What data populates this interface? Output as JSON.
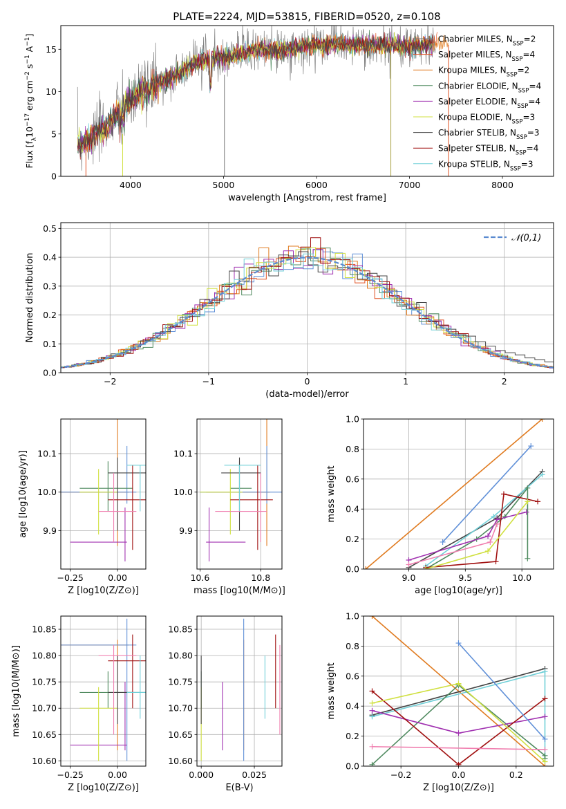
{
  "figure": {
    "title": "PLATE=2224, MJD=53815, FIBERID=0520, z=0.108"
  },
  "legend_entries": [
    {
      "name": "Chabrier MILES, N_SSP=2",
      "base": "Chabrier MILES, N",
      "sub": "SSP",
      "tail": "=2",
      "color": "#777777"
    },
    {
      "name": "Salpeter MILES, N_SSP=4",
      "base": "Salpeter MILES, N",
      "sub": "SSP",
      "tail": "=4",
      "color": "#e05020"
    },
    {
      "name": "Kroupa MILES, N_SSP=2",
      "base": "Kroupa MILES, N",
      "sub": "SSP",
      "tail": "=2",
      "color": "#e07b20"
    },
    {
      "name": "Chabrier ELODIE, N_SSP=4",
      "base": "Chabrier ELODIE, N",
      "sub": "SSP",
      "tail": "=4",
      "color": "#4f8a5f"
    },
    {
      "name": "Salpeter ELODIE, N_SSP=4",
      "base": "Salpeter ELODIE, N",
      "sub": "SSP",
      "tail": "=4",
      "color": "#a030b0"
    },
    {
      "name": "Kroupa ELODIE, N_SSP=3",
      "base": "Kroupa ELODIE, N",
      "sub": "SSP",
      "tail": "=3",
      "color": "#d0e040"
    },
    {
      "name": "Chabrier STELIB, N_SSP=3",
      "base": "Chabrier STELIB, N",
      "sub": "SSP",
      "tail": "=3",
      "color": "#444444"
    },
    {
      "name": "Salpeter STELIB, N_SSP=4",
      "base": "Salpeter STELIB, N",
      "sub": "SSP",
      "tail": "=4",
      "color": "#a01010"
    },
    {
      "name": "Kroupa STELIB, N_SSP=3",
      "base": "Kroupa STELIB, N",
      "sub": "SSP",
      "tail": "=3",
      "color": "#70d0d8"
    }
  ],
  "chart_data": [
    {
      "id": "spectrum",
      "type": "line",
      "title": "PLATE=2224, MJD=53815, FIBERID=0520, z=0.108",
      "xlabel": "wavelength [Angstrom, rest frame]",
      "ylabel_parts": [
        "Flux [f",
        "λ",
        "10",
        "−17",
        " erg cm",
        "−2",
        " s",
        "−1",
        " A",
        "−1",
        "]"
      ],
      "xlim": [
        3250,
        8550
      ],
      "ylim": [
        0,
        17.8
      ],
      "xticks": [
        "4000",
        "5000",
        "6000",
        "7000",
        "8000"
      ],
      "yticks": [
        "0",
        "5",
        "10",
        "15"
      ],
      "envelope": {
        "x": [
          3450,
          3600,
          3750,
          3900,
          4000,
          4100,
          4200,
          4300,
          4500,
          4700,
          4900,
          5000,
          5200,
          5400,
          5600,
          5800,
          6000,
          6200,
          6400,
          6600,
          6800,
          7000,
          7200,
          7400
        ],
        "y": [
          4.0,
          4.6,
          6.0,
          8.0,
          8.8,
          10.0,
          10.2,
          11.0,
          12.0,
          13.3,
          14.0,
          14.0,
          14.5,
          15.0,
          14.8,
          15.2,
          15.5,
          15.6,
          15.5,
          15.4,
          15.5,
          15.3,
          15.6,
          15.7
        ]
      },
      "grid": false,
      "legend_placement": "upper right"
    },
    {
      "id": "residuals",
      "type": "line",
      "xlabel": "(data-model)/error",
      "ylabel": "Normed distribution",
      "xlim": [
        -2.5,
        2.5
      ],
      "ylim": [
        0,
        0.52
      ],
      "xticks": [
        "−2",
        "−1",
        "0",
        "1",
        "2"
      ],
      "yticks": [
        "0.0",
        "0.1",
        "0.2",
        "0.3",
        "0.4",
        "0.5"
      ],
      "reference_curve": "N(0,1)",
      "legend_label": "𝒩(0,1)",
      "grid": true,
      "legend_placement": "upper right"
    },
    {
      "id": "age_vs_Z",
      "type": "scatter",
      "xlabel": "Z [log10(Z/Z⊙)]",
      "ylabel": "age [log10(age/yr)]",
      "xlim": [
        -0.3,
        0.15
      ],
      "ylim": [
        9.8,
        10.19
      ],
      "xticks": [
        "−0.25",
        "0.00"
      ],
      "yticks": [
        "9.9",
        "10.0",
        "10.1"
      ],
      "grid": true
    },
    {
      "id": "age_vs_mass",
      "type": "scatter",
      "xlabel": "mass [log10(M/M⊙)]",
      "xlim": [
        10.59,
        10.87
      ],
      "ylim": [
        9.8,
        10.19
      ],
      "xticks": [
        "10.6",
        "10.8"
      ],
      "yticks": [
        "9.9",
        "10.0",
        "10.1"
      ],
      "grid": true
    },
    {
      "id": "mass_weight_vs_age",
      "type": "line",
      "xlabel": "age [log10(age/yr)]",
      "ylabel": "mass weight",
      "xlim": [
        8.6,
        10.28
      ],
      "ylim": [
        0,
        1.0
      ],
      "xticks": [
        "9.0",
        "9.5",
        "10.0"
      ],
      "yticks": [
        "0.0",
        "0.2",
        "0.4",
        "0.6",
        "0.8",
        "1.0"
      ],
      "grid": true,
      "series": [
        {
          "name": "Kroupa MILES, N_SSP=2",
          "color": "#e07b20",
          "x": [
            8.62,
            10.18
          ],
          "y": [
            0.0,
            1.0
          ]
        },
        {
          "name": "Chabrier STELIB, N_SSP=3",
          "color": "#444444",
          "x": [
            9.0,
            9.78,
            10.18
          ],
          "y": [
            0.01,
            0.34,
            0.65
          ]
        },
        {
          "name": "Kroupa STELIB, N_SSP=3",
          "color": "#70d0d8",
          "x": [
            9.15,
            9.75,
            10.18
          ],
          "y": [
            0.02,
            0.35,
            0.63
          ]
        },
        {
          "name": "Chabrier ELODIE, N_SSP=4",
          "color": "#4f8a5f",
          "x": [
            9.15,
            9.6,
            9.85,
            10.05,
            10.05
          ],
          "y": [
            0.0,
            0.2,
            0.35,
            0.54,
            0.07
          ]
        },
        {
          "name": "Salpeter ELODIE, N_SSP=4",
          "color": "#a030b0",
          "x": [
            9.0,
            9.7,
            9.78,
            10.04
          ],
          "y": [
            0.06,
            0.22,
            0.33,
            0.38
          ]
        },
        {
          "name": "Salpeter STELIB, N_SSP=4",
          "color": "#a01010",
          "x": [
            9.15,
            9.77,
            9.84,
            10.14
          ],
          "y": [
            0.01,
            0.05,
            0.5,
            0.45
          ]
        },
        {
          "name": "Chabrier MILES, N_SSP=2",
          "color": "#6090d8",
          "x": [
            9.3,
            10.08
          ],
          "y": [
            0.18,
            0.82
          ]
        },
        {
          "name": "Kroupa ELODIE, N_SSP=3",
          "color": "#d0e040",
          "x": [
            9.15,
            9.7,
            10.05
          ],
          "y": [
            0.0,
            0.12,
            0.45
          ]
        },
        {
          "name": "Salpeter MILES, N_SSP=4",
          "color": "#f080b0",
          "x": [
            9.0,
            9.72,
            9.78
          ],
          "y": [
            0.03,
            0.18,
            0.3
          ]
        }
      ]
    },
    {
      "id": "mass_vs_Z",
      "type": "scatter",
      "xlabel": "Z [log10(Z/Z⊙)]",
      "ylabel": "mass [log10(M/M⊙)]",
      "xlim": [
        -0.3,
        0.15
      ],
      "ylim": [
        10.59,
        10.875
      ],
      "xticks": [
        "−0.25",
        "0.00"
      ],
      "yticks": [
        "10.60",
        "10.65",
        "10.70",
        "10.75",
        "10.80",
        "10.85"
      ],
      "grid": true
    },
    {
      "id": "mass_vs_ebv",
      "type": "scatter",
      "xlabel": "E(B-V)",
      "xlim": [
        -0.002,
        0.038
      ],
      "ylim": [
        10.59,
        10.875
      ],
      "xticks": [
        "0.000",
        "0.025"
      ],
      "yticks": [
        "10.60",
        "10.65",
        "10.70",
        "10.75",
        "10.80",
        "10.85"
      ],
      "grid": true
    },
    {
      "id": "mass_weight_vs_Z",
      "type": "line",
      "xlabel": "Z [log10(Z/Z⊙)]",
      "ylabel": "mass weight",
      "xlim": [
        -0.33,
        0.33
      ],
      "ylim": [
        0,
        1.0
      ],
      "xticks": [
        "−0.2",
        "0.0",
        "0.2"
      ],
      "yticks": [
        "0.0",
        "0.2",
        "0.4",
        "0.6",
        "0.8",
        "1.0"
      ],
      "grid": true,
      "series": [
        {
          "name": "Kroupa MILES, N_SSP=2",
          "color": "#e07b20",
          "x": [
            -0.3,
            0.3
          ],
          "y": [
            1.0,
            0.0
          ]
        },
        {
          "name": "Chabrier STELIB, N_SSP=3",
          "color": "#444444",
          "x": [
            -0.3,
            0.3
          ],
          "y": [
            0.34,
            0.65
          ]
        },
        {
          "name": "Kroupa STELIB, N_SSP=3",
          "color": "#70d0d8",
          "x": [
            -0.3,
            0.3,
            0.3
          ],
          "y": [
            0.33,
            0.63,
            0.03
          ]
        },
        {
          "name": "Chabrier ELODIE, N_SSP=4",
          "color": "#4f8a5f",
          "x": [
            -0.3,
            0.0,
            0.3,
            0.3
          ],
          "y": [
            0.01,
            0.54,
            0.07,
            0.05
          ]
        },
        {
          "name": "Salpeter ELODIE, N_SSP=4",
          "color": "#a030b0",
          "x": [
            -0.3,
            0.0,
            0.3
          ],
          "y": [
            0.37,
            0.22,
            0.33
          ]
        },
        {
          "name": "Salpeter STELIB, N_SSP=4",
          "color": "#a01010",
          "x": [
            -0.3,
            0.0,
            0.3
          ],
          "y": [
            0.5,
            0.01,
            0.45
          ]
        },
        {
          "name": "Chabrier MILES, N_SSP=2",
          "color": "#6090d8",
          "x": [
            0.0,
            0.3
          ],
          "y": [
            0.82,
            0.18
          ]
        },
        {
          "name": "Kroupa ELODIE, N_SSP=3",
          "color": "#d0e040",
          "x": [
            -0.3,
            0.0,
            0.3
          ],
          "y": [
            0.42,
            0.55,
            0.03
          ]
        },
        {
          "name": "Salpeter MILES, N_SSP=4",
          "color": "#f080b0",
          "x": [
            -0.3,
            0.3
          ],
          "y": [
            0.13,
            0.11
          ]
        }
      ]
    }
  ],
  "errorbars": [
    {
      "color": "#e07b20",
      "Z": [
        -0.3,
        0.06,
        0.0
      ],
      "age": [
        9.86,
        10.2,
        10.0
      ],
      "mass": [
        10.62,
        10.83,
        10.82
      ],
      "ebv": 0.02
    },
    {
      "color": "#6090d8",
      "Z": [
        -0.3,
        0.1,
        0.05
      ],
      "age": [
        9.97,
        10.12,
        10.0
      ],
      "mass": [
        10.6,
        10.87,
        10.82
      ],
      "ebv": 0.02
    },
    {
      "color": "#4f8a5f",
      "Z": [
        -0.2,
        0.08,
        -0.05
      ],
      "age": [
        9.95,
        10.08,
        10.01
      ],
      "mass": [
        10.7,
        10.77,
        10.73
      ],
      "ebv": 0.0
    },
    {
      "color": "#a030b0",
      "Z": [
        -0.25,
        0.05,
        0.04
      ],
      "age": [
        9.82,
        9.96,
        9.87
      ],
      "mass": [
        10.62,
        10.75,
        10.63
      ],
      "ebv": 0.01
    },
    {
      "color": "#d0e040",
      "Z": [
        -0.2,
        0.0,
        -0.1
      ],
      "age": [
        9.89,
        10.06,
        10.0
      ],
      "mass": [
        10.6,
        10.74,
        10.7
      ],
      "ebv": 0.0
    },
    {
      "color": "#444444",
      "Z": [
        -0.05,
        0.15,
        0.0
      ],
      "age": [
        9.9,
        10.09,
        10.05
      ],
      "mass": [
        10.67,
        10.8,
        10.73
      ],
      "ebv": 0.0
    },
    {
      "color": "#a01010",
      "Z": [
        -0.05,
        0.15,
        0.08
      ],
      "age": [
        9.85,
        10.07,
        9.98
      ],
      "mass": [
        10.7,
        10.84,
        10.79
      ],
      "ebv": 0.035
    },
    {
      "color": "#70d0d8",
      "Z": [
        0.05,
        0.15,
        0.12
      ],
      "age": [
        9.95,
        10.07,
        10.07
      ],
      "mass": [
        10.68,
        10.8,
        10.73
      ],
      "ebv": 0.03
    },
    {
      "color": "#f080b0",
      "Z": [
        -0.1,
        0.1,
        -0.02
      ],
      "age": [
        9.87,
        10.05,
        9.95
      ],
      "mass": [
        10.65,
        10.82,
        10.8
      ],
      "ebv": 0.037
    }
  ]
}
